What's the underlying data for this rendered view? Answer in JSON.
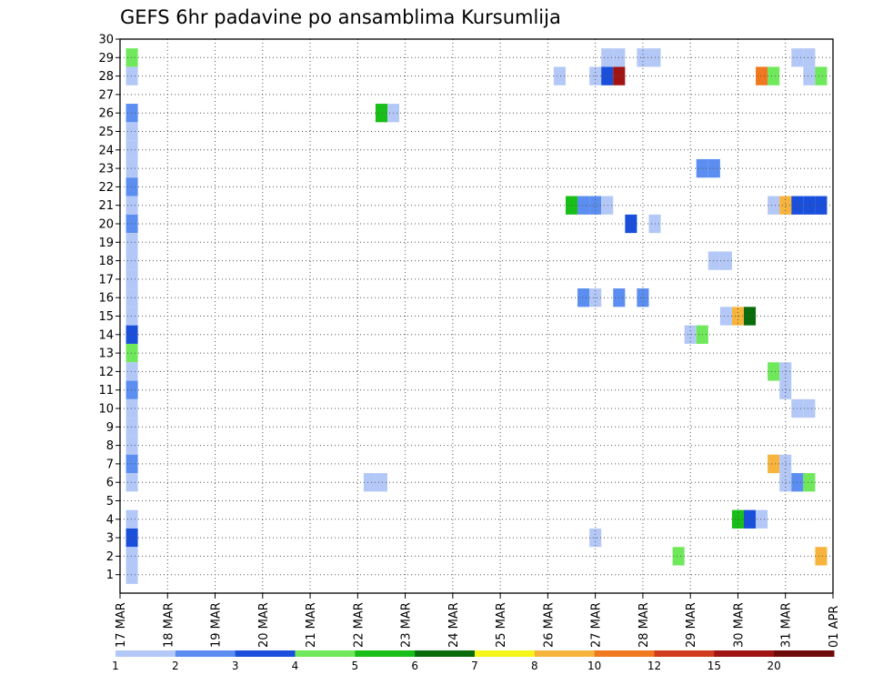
{
  "chart_data": {
    "type": "heatmap",
    "title": "GEFS 6hr padavine po ansamblima Kursumlija",
    "x_tick_labels": [
      "17 MAR",
      "18 MAR",
      "19 MAR",
      "20 MAR",
      "21 MAR",
      "22 MAR",
      "23 MAR",
      "24 MAR",
      "25 MAR",
      "26 MAR",
      "27 MAR",
      "28 MAR",
      "29 MAR",
      "30 MAR",
      "31 MAR",
      "01 APR"
    ],
    "y_tick_labels": [
      "1",
      "2",
      "3",
      "4",
      "5",
      "6",
      "7",
      "8",
      "9",
      "10",
      "11",
      "12",
      "13",
      "14",
      "15",
      "16",
      "17",
      "18",
      "19",
      "20",
      "21",
      "22",
      "23",
      "24",
      "25",
      "26",
      "27",
      "28",
      "29",
      "30"
    ],
    "xlim_days": [
      0,
      15
    ],
    "ylim": [
      0,
      30
    ],
    "step_hours": 6,
    "grid": true,
    "colorbar": {
      "levels": [
        "1",
        "2",
        "3",
        "4",
        "5",
        "6",
        "7",
        "8",
        "10",
        "12",
        "15",
        "20"
      ],
      "colors": [
        "#b4c8f7",
        "#5b8ef0",
        "#1a4fdb",
        "#6fe85c",
        "#18bf18",
        "#0a6b0a",
        "#f5f51a",
        "#f7b43c",
        "#f0781e",
        "#d23c1e",
        "#a01414",
        "#6e0a0a"
      ]
    },
    "cells": [
      {
        "t": 0.25,
        "m": 29,
        "c": 4
      },
      {
        "t": 0.25,
        "m": 28,
        "c": 1
      },
      {
        "t": 0.25,
        "m": 26,
        "c": 2
      },
      {
        "t": 0.25,
        "m": 25,
        "c": 1
      },
      {
        "t": 0.25,
        "m": 24,
        "c": 1
      },
      {
        "t": 0.25,
        "m": 23,
        "c": 1
      },
      {
        "t": 0.25,
        "m": 22,
        "c": 2
      },
      {
        "t": 0.25,
        "m": 21,
        "c": 1
      },
      {
        "t": 0.25,
        "m": 20,
        "c": 2
      },
      {
        "t": 0.25,
        "m": 19,
        "c": 1
      },
      {
        "t": 0.25,
        "m": 18,
        "c": 1
      },
      {
        "t": 0.25,
        "m": 17,
        "c": 1
      },
      {
        "t": 0.25,
        "m": 16,
        "c": 1
      },
      {
        "t": 0.25,
        "m": 15,
        "c": 1
      },
      {
        "t": 0.25,
        "m": 14,
        "c": 3
      },
      {
        "t": 0.25,
        "m": 13,
        "c": 4
      },
      {
        "t": 0.25,
        "m": 12,
        "c": 1
      },
      {
        "t": 0.25,
        "m": 11,
        "c": 2
      },
      {
        "t": 0.25,
        "m": 10,
        "c": 1
      },
      {
        "t": 0.25,
        "m": 9,
        "c": 1
      },
      {
        "t": 0.25,
        "m": 8,
        "c": 1
      },
      {
        "t": 0.25,
        "m": 7,
        "c": 2
      },
      {
        "t": 0.25,
        "m": 6,
        "c": 1
      },
      {
        "t": 0.25,
        "m": 4,
        "c": 1
      },
      {
        "t": 0.25,
        "m": 3,
        "c": 3
      },
      {
        "t": 0.25,
        "m": 2,
        "c": 1
      },
      {
        "t": 0.25,
        "m": 1,
        "c": 1
      },
      {
        "t": 5.5,
        "m": 26,
        "c": 5
      },
      {
        "t": 5.75,
        "m": 26,
        "c": 1
      },
      {
        "t": 5.25,
        "m": 6,
        "c": 1
      },
      {
        "t": 5.5,
        "m": 6,
        "c": 1
      },
      {
        "t": 9.25,
        "m": 28,
        "c": 1
      },
      {
        "t": 9.5,
        "m": 21,
        "c": 5
      },
      {
        "t": 9.75,
        "m": 21,
        "c": 2
      },
      {
        "t": 10.0,
        "m": 21,
        "c": 2
      },
      {
        "t": 10.25,
        "m": 21,
        "c": 1
      },
      {
        "t": 9.75,
        "m": 16,
        "c": 2
      },
      {
        "t": 10.0,
        "m": 16,
        "c": 1
      },
      {
        "t": 10.5,
        "m": 16,
        "c": 2
      },
      {
        "t": 11.0,
        "m": 16,
        "c": 2
      },
      {
        "t": 10.0,
        "m": 3,
        "c": 1
      },
      {
        "t": 10.0,
        "m": 28,
        "c": 1
      },
      {
        "t": 10.25,
        "m": 28,
        "c": 3
      },
      {
        "t": 10.5,
        "m": 28,
        "c": 11
      },
      {
        "t": 10.25,
        "m": 29,
        "c": 1
      },
      {
        "t": 10.5,
        "m": 29,
        "c": 1
      },
      {
        "t": 11.0,
        "m": 29,
        "c": 1
      },
      {
        "t": 11.25,
        "m": 29,
        "c": 1
      },
      {
        "t": 10.75,
        "m": 20,
        "c": 3
      },
      {
        "t": 11.25,
        "m": 20,
        "c": 1
      },
      {
        "t": 11.75,
        "m": 2,
        "c": 4
      },
      {
        "t": 12.25,
        "m": 23,
        "c": 2
      },
      {
        "t": 12.5,
        "m": 23,
        "c": 2
      },
      {
        "t": 12.5,
        "m": 18,
        "c": 1
      },
      {
        "t": 12.75,
        "m": 18,
        "c": 1
      },
      {
        "t": 12.75,
        "m": 15,
        "c": 1
      },
      {
        "t": 13.0,
        "m": 15,
        "c": 8
      },
      {
        "t": 13.25,
        "m": 15,
        "c": 6
      },
      {
        "t": 12.0,
        "m": 14,
        "c": 1
      },
      {
        "t": 12.25,
        "m": 14,
        "c": 4
      },
      {
        "t": 13.0,
        "m": 4,
        "c": 5
      },
      {
        "t": 13.25,
        "m": 4,
        "c": 3
      },
      {
        "t": 13.5,
        "m": 4,
        "c": 1
      },
      {
        "t": 13.5,
        "m": 28,
        "c": 9
      },
      {
        "t": 13.75,
        "m": 28,
        "c": 4
      },
      {
        "t": 13.75,
        "m": 21,
        "c": 1
      },
      {
        "t": 14.0,
        "m": 21,
        "c": 8
      },
      {
        "t": 14.25,
        "m": 21,
        "c": 3
      },
      {
        "t": 14.5,
        "m": 21,
        "c": 3
      },
      {
        "t": 14.75,
        "m": 21,
        "c": 3
      },
      {
        "t": 13.75,
        "m": 12,
        "c": 4
      },
      {
        "t": 14.0,
        "m": 12,
        "c": 1
      },
      {
        "t": 14.0,
        "m": 11,
        "c": 1
      },
      {
        "t": 14.25,
        "m": 10,
        "c": 1
      },
      {
        "t": 14.5,
        "m": 10,
        "c": 1
      },
      {
        "t": 13.75,
        "m": 7,
        "c": 8
      },
      {
        "t": 14.0,
        "m": 7,
        "c": 1
      },
      {
        "t": 14.0,
        "m": 6,
        "c": 1
      },
      {
        "t": 14.25,
        "m": 6,
        "c": 2
      },
      {
        "t": 14.5,
        "m": 6,
        "c": 4
      },
      {
        "t": 14.25,
        "m": 29,
        "c": 1
      },
      {
        "t": 14.5,
        "m": 29,
        "c": 1
      },
      {
        "t": 14.5,
        "m": 28,
        "c": 1
      },
      {
        "t": 14.75,
        "m": 28,
        "c": 4
      },
      {
        "t": 14.75,
        "m": 2,
        "c": 8
      }
    ]
  }
}
